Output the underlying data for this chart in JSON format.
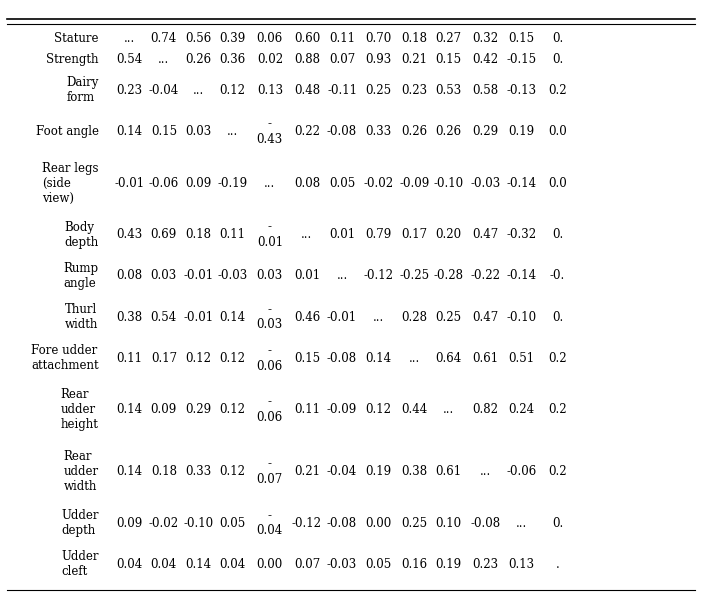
{
  "rows": [
    {
      "label": "Stature",
      "values": [
        "...",
        "0.74",
        "0.56",
        "0.39",
        "0.06",
        "0.60",
        "0.11",
        "0.70",
        "0.18",
        "0.27",
        "0.32",
        "0.15",
        "0."
      ]
    },
    {
      "label": "Strength",
      "values": [
        "0.54",
        "...",
        "0.26",
        "0.36",
        "0.02",
        "0.88",
        "0.07",
        "0.93",
        "0.21",
        "0.15",
        "0.42",
        "-0.15",
        "0."
      ]
    },
    {
      "label": "Dairy\nform",
      "values": [
        "0.23",
        "-0.04",
        "...",
        "0.12",
        "0.13",
        "0.48",
        "-0.11",
        "0.25",
        "0.23",
        "0.53",
        "0.58",
        "-0.13",
        "0.2"
      ]
    },
    {
      "label": "Foot angle",
      "values": [
        "0.14",
        "0.15",
        "0.03",
        "...",
        "-\n0.43",
        "0.22",
        "-0.08",
        "0.33",
        "0.26",
        "0.26",
        "0.29",
        "0.19",
        "0.0"
      ]
    },
    {
      "label": "Rear legs\n(side\nview)",
      "values": [
        "-0.01",
        "-0.06",
        "0.09",
        "-0.19",
        "...",
        "0.08",
        "0.05",
        "-0.02",
        "-0.09",
        "-0.10",
        "-0.03",
        "-0.14",
        "0.0"
      ]
    },
    {
      "label": "Body\ndepth",
      "values": [
        "0.43",
        "0.69",
        "0.18",
        "0.11",
        "-\n0.01",
        "...",
        "0.01",
        "0.79",
        "0.17",
        "0.20",
        "0.47",
        "-0.32",
        "0."
      ]
    },
    {
      "label": "Rump\nangle",
      "values": [
        "0.08",
        "0.03",
        "-0.01",
        "-0.03",
        "0.03",
        "0.01",
        "...",
        "-0.12",
        "-0.25",
        "-0.28",
        "-0.22",
        "-0.14",
        "-0."
      ]
    },
    {
      "label": "Thurl\nwidth",
      "values": [
        "0.38",
        "0.54",
        "-0.01",
        "0.14",
        "-\n0.03",
        "0.46",
        "-0.01",
        "...",
        "0.28",
        "0.25",
        "0.47",
        "-0.10",
        "0."
      ]
    },
    {
      "label": "Fore udder\nattachment",
      "values": [
        "0.11",
        "0.17",
        "0.12",
        "0.12",
        "-\n0.06",
        "0.15",
        "-0.08",
        "0.14",
        "...",
        "0.64",
        "0.61",
        "0.51",
        "0.2"
      ]
    },
    {
      "label": "Rear\nudder\nheight",
      "values": [
        "0.14",
        "0.09",
        "0.29",
        "0.12",
        "-\n0.06",
        "0.11",
        "-0.09",
        "0.12",
        "0.44",
        "...",
        "0.82",
        "0.24",
        "0.2"
      ]
    },
    {
      "label": "Rear\nudder\nwidth",
      "values": [
        "0.14",
        "0.18",
        "0.33",
        "0.12",
        "-\n0.07",
        "0.21",
        "-0.04",
        "0.19",
        "0.38",
        "0.61",
        "...",
        "-0.06",
        "0.2"
      ]
    },
    {
      "label": "Udder\ndepth",
      "values": [
        "0.09",
        "-0.02",
        "-0.10",
        "0.05",
        "-\n0.04",
        "-0.12",
        "-0.08",
        "0.00",
        "0.25",
        "0.10",
        "-0.08",
        "...",
        "0."
      ]
    },
    {
      "label": "Udder\ncleft",
      "values": [
        "0.04",
        "0.04",
        "0.14",
        "0.04",
        "0.00",
        "0.07",
        "-0.03",
        "0.05",
        "0.16",
        "0.19",
        "0.23",
        "0.13",
        "."
      ]
    }
  ],
  "font_size": 8.5,
  "text_color": "#000000",
  "bg_color": "#ffffff",
  "line_color": "#000000"
}
